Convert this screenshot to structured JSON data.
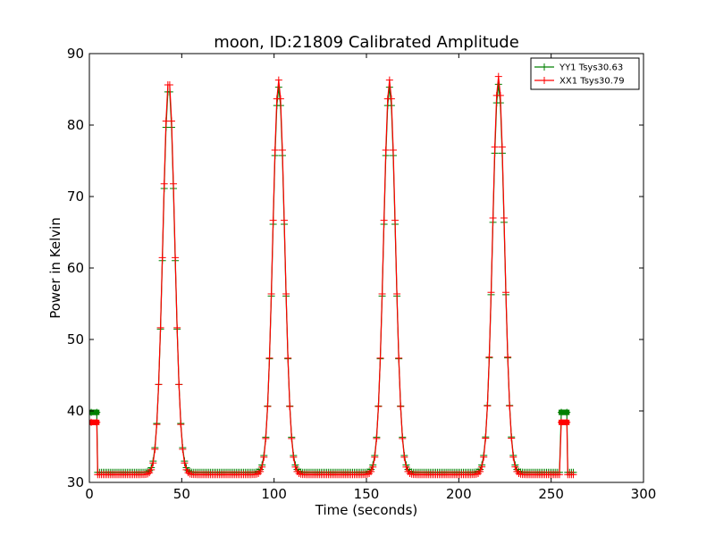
{
  "chart_data": {
    "type": "line",
    "title": "moon, ID:21809 Calibrated Amplitude",
    "xlabel": "Time (seconds)",
    "ylabel": "Power in Kelvin",
    "xlim": [
      0,
      300
    ],
    "ylim": [
      30,
      90
    ],
    "xticks": [
      0,
      50,
      100,
      150,
      200,
      250,
      300
    ],
    "yticks": [
      30,
      40,
      50,
      60,
      70,
      80,
      90
    ],
    "legend_position": "top-right",
    "grid": false,
    "series": [
      {
        "name": "YY1 Tsys30.63",
        "color": "#008000",
        "marker": "plus",
        "baseline": 31.4,
        "peaks": [
          {
            "center": 43,
            "peak": 85.3,
            "width": 3.2
          },
          {
            "center": 102.5,
            "peak": 85.3,
            "width": 3.2
          },
          {
            "center": 162.5,
            "peak": 85.3,
            "width": 3.2
          },
          {
            "center": 221.5,
            "peak": 85.7,
            "width": 3.2
          }
        ],
        "cal_segments": [
          {
            "x": [
              1,
              4
            ],
            "y": 39.8
          },
          {
            "x": [
              255.5,
              258.5
            ],
            "y": 39.8
          }
        ],
        "x_end": 262
      },
      {
        "name": "XX1 Tsys30.79",
        "color": "#ff0000",
        "marker": "plus",
        "baseline": 31.1,
        "peaks": [
          {
            "center": 43,
            "peak": 86.3,
            "width": 3.2
          },
          {
            "center": 102.5,
            "peak": 86.3,
            "width": 3.2
          },
          {
            "center": 162.5,
            "peak": 86.3,
            "width": 3.2
          },
          {
            "center": 221.5,
            "peak": 86.8,
            "width": 3.2
          }
        ],
        "cal_segments": [
          {
            "x": [
              1,
              4
            ],
            "y": 38.4
          },
          {
            "x": [
              255.5,
              258.5
            ],
            "y": 38.4
          }
        ],
        "x_end": 262
      }
    ]
  }
}
